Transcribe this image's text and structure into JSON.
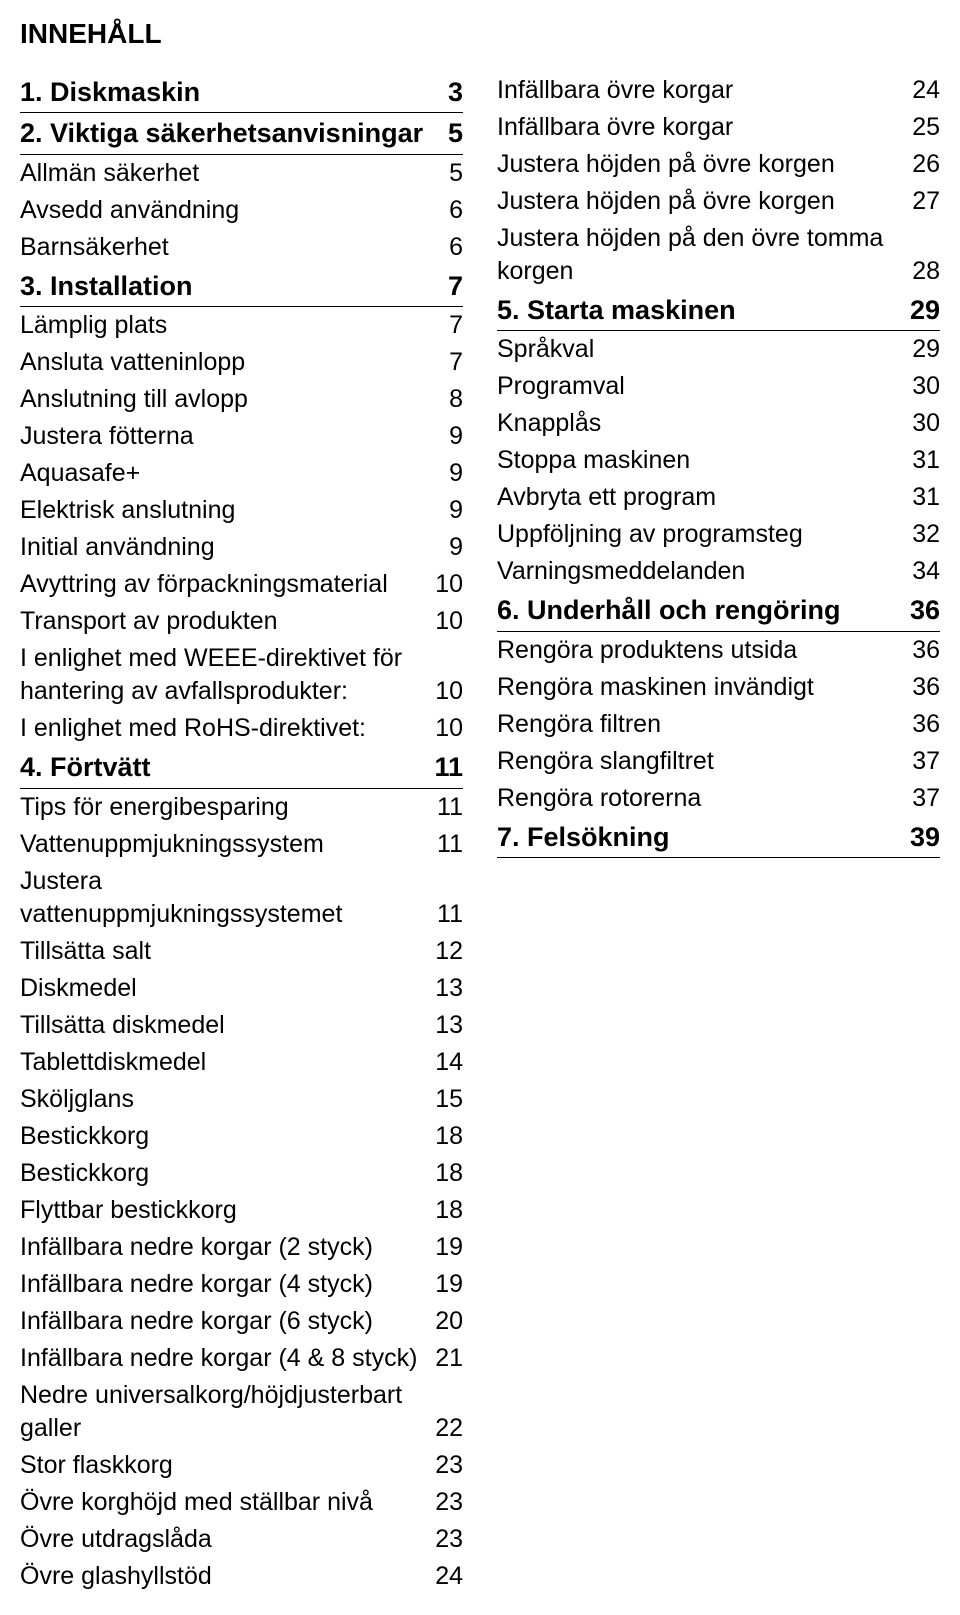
{
  "title": "INNEHÅLL",
  "left": [
    {
      "t": "section",
      "label": "1. Diskmaskin",
      "page": "3"
    },
    {
      "t": "section",
      "label": "2. Viktiga säkerhetsanvisningar",
      "page": "5"
    },
    {
      "t": "sub",
      "label": "Allmän säkerhet",
      "page": "5"
    },
    {
      "t": "sub",
      "label": "Avsedd användning",
      "page": "6"
    },
    {
      "t": "sub",
      "label": "Barnsäkerhet",
      "page": "6"
    },
    {
      "t": "section",
      "label": "3. Installation",
      "page": "7"
    },
    {
      "t": "sub",
      "label": "Lämplig plats",
      "page": "7"
    },
    {
      "t": "sub",
      "label": "Ansluta vatteninlopp",
      "page": "7"
    },
    {
      "t": "sub",
      "label": "Anslutning till avlopp",
      "page": "8"
    },
    {
      "t": "sub",
      "label": "Justera fötterna",
      "page": "9"
    },
    {
      "t": "sub",
      "label": "Aquasafe+",
      "page": "9"
    },
    {
      "t": "sub",
      "label": "Elektrisk anslutning",
      "page": "9"
    },
    {
      "t": "sub",
      "label": "Initial användning",
      "page": "9"
    },
    {
      "t": "sub",
      "label": "Avyttring av förpackningsmaterial",
      "page": "10"
    },
    {
      "t": "sub",
      "label": "Transport av produkten",
      "page": "10"
    },
    {
      "t": "sub",
      "label": "I enlighet med WEEE-direktivet för hantering av avfallsprodukter:",
      "page": "10"
    },
    {
      "t": "sub",
      "label": "I enlighet med RoHS-direktivet:",
      "page": "10"
    },
    {
      "t": "section",
      "label": "4. Förtvätt",
      "page": "11"
    },
    {
      "t": "sub",
      "label": "Tips för energibesparing",
      "page": "11"
    },
    {
      "t": "sub",
      "label": "Vattenuppmjukningssystem",
      "page": "11"
    },
    {
      "t": "sub",
      "label": "Justera vattenuppmjukningssystemet",
      "page": "11"
    },
    {
      "t": "sub",
      "label": "Tillsätta salt",
      "page": "12"
    },
    {
      "t": "sub",
      "label": "Diskmedel",
      "page": "13"
    },
    {
      "t": "sub",
      "label": "Tillsätta diskmedel",
      "page": "13"
    },
    {
      "t": "sub",
      "label": "Tablettdiskmedel",
      "page": "14"
    },
    {
      "t": "sub",
      "label": "Sköljglans",
      "page": "15"
    },
    {
      "t": "sub",
      "label": "Bestickkorg",
      "page": "18"
    },
    {
      "t": "sub",
      "label": "Bestickkorg",
      "page": "18"
    },
    {
      "t": "sub",
      "label": "Flyttbar bestickkorg",
      "page": "18"
    },
    {
      "t": "sub",
      "label": "Infällbara nedre korgar (2 styck)",
      "page": "19"
    },
    {
      "t": "sub",
      "label": "Infällbara nedre korgar (4 styck)",
      "page": "19"
    },
    {
      "t": "sub",
      "label": "Infällbara nedre korgar (6 styck)",
      "page": "20"
    },
    {
      "t": "sub",
      "label": "Infällbara nedre korgar (4 & 8 styck)",
      "page": "21"
    },
    {
      "t": "sub",
      "label": "Nedre universalkorg/höjdjusterbart galler",
      "page": "22"
    },
    {
      "t": "sub",
      "label": "Stor flaskkorg",
      "page": "23"
    },
    {
      "t": "sub",
      "label": "Övre korghöjd med ställbar nivå",
      "page": "23"
    },
    {
      "t": "sub",
      "label": "Övre utdragslåda",
      "page": "23"
    },
    {
      "t": "sub",
      "label": "Övre glashyllstöd",
      "page": "24"
    }
  ],
  "right": [
    {
      "t": "sub",
      "label": "Infällbara övre korgar",
      "page": "24"
    },
    {
      "t": "sub",
      "label": "Infällbara övre korgar",
      "page": "25"
    },
    {
      "t": "sub",
      "label": "Justera höjden på övre korgen",
      "page": "26"
    },
    {
      "t": "sub",
      "label": "Justera höjden på övre korgen",
      "page": "27"
    },
    {
      "t": "sub",
      "label": "Justera höjden på den övre tomma korgen",
      "page": "28"
    },
    {
      "t": "section",
      "label": "5. Starta maskinen",
      "page": "29"
    },
    {
      "t": "sub",
      "label": "Språkval",
      "page": "29"
    },
    {
      "t": "sub",
      "label": "Programval",
      "page": "30"
    },
    {
      "t": "sub",
      "label": "Knapplås",
      "page": "30"
    },
    {
      "t": "sub",
      "label": "Stoppa maskinen",
      "page": "31"
    },
    {
      "t": "sub",
      "label": "Avbryta ett program",
      "page": "31"
    },
    {
      "t": "sub",
      "label": "Uppföljning av programsteg",
      "page": "32"
    },
    {
      "t": "sub",
      "label": "Varningsmeddelanden",
      "page": "34"
    },
    {
      "t": "section",
      "label": "6. Underhåll och rengöring",
      "page": "36"
    },
    {
      "t": "sub",
      "label": "Rengöra produktens utsida",
      "page": "36"
    },
    {
      "t": "sub",
      "label": "Rengöra maskinen invändigt",
      "page": "36"
    },
    {
      "t": "sub",
      "label": "Rengöra filtren",
      "page": "36"
    },
    {
      "t": "sub",
      "label": "Rengöra slangfiltret",
      "page": "37"
    },
    {
      "t": "sub",
      "label": "Rengöra rotorerna",
      "page": "37"
    },
    {
      "t": "section",
      "label": "7. Felsökning",
      "page": "39"
    }
  ]
}
